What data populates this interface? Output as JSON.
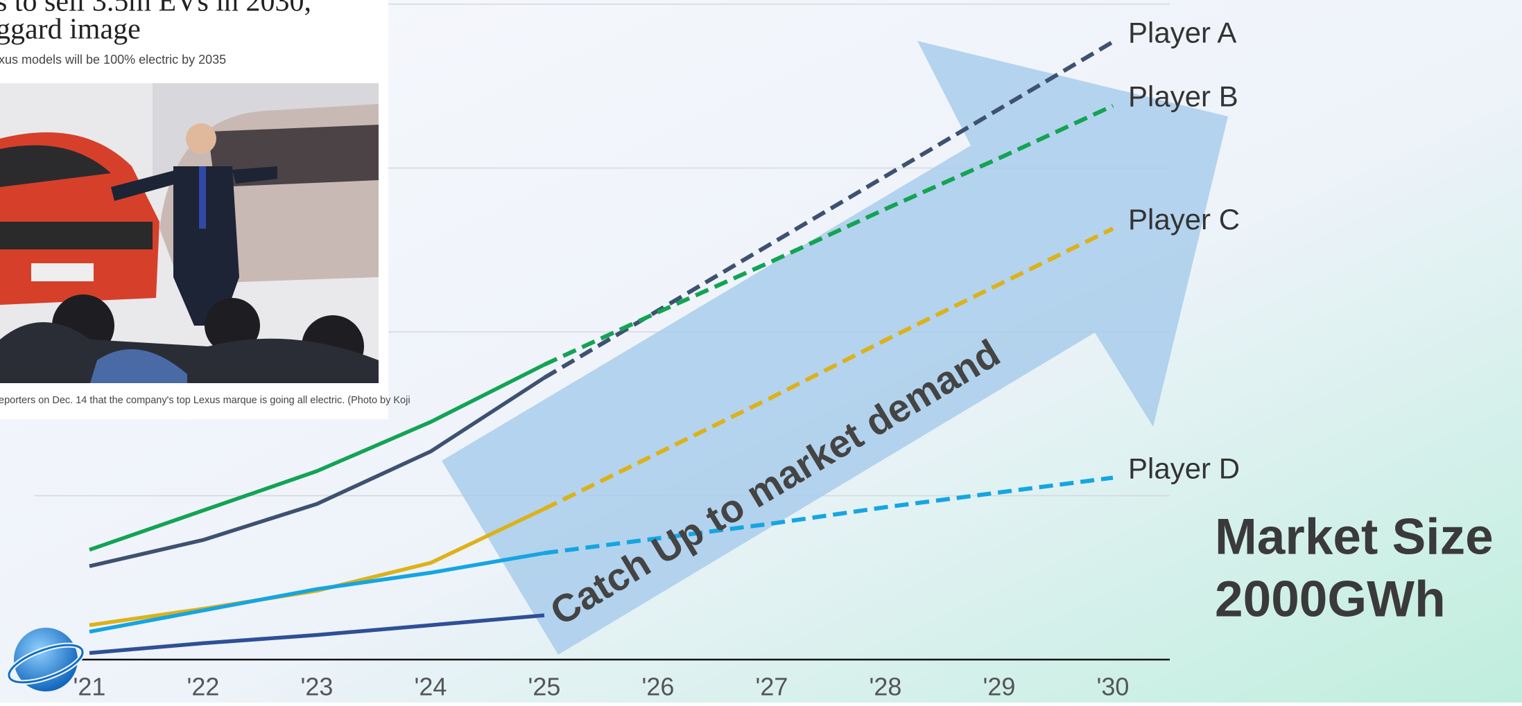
{
  "chart_data": {
    "type": "line",
    "categories": [
      "'21",
      "'22",
      "'23",
      "'24",
      "'25",
      "'26",
      "'27",
      "'28",
      "'29",
      "'30"
    ],
    "ylim": [
      0,
      4
    ],
    "yticks": [
      0,
      1,
      2,
      3,
      4
    ],
    "grid": true,
    "projection_from": 4,
    "series": [
      {
        "name": "Player A",
        "color": "#3d5170",
        "values": [
          0.57,
          0.73,
          0.95,
          1.27,
          1.72,
          2.13,
          2.54,
          2.95,
          3.36,
          3.77
        ]
      },
      {
        "name": "Player B",
        "color": "#13a354",
        "values": [
          0.67,
          0.91,
          1.15,
          1.45,
          1.8,
          2.12,
          2.43,
          2.75,
          3.06,
          3.38
        ]
      },
      {
        "name": "Player C",
        "color": "#dcb21a",
        "values": [
          0.21,
          0.31,
          0.42,
          0.59,
          0.92,
          1.26,
          1.6,
          1.95,
          2.29,
          2.63
        ]
      },
      {
        "name": "Player D",
        "color": "#15a5e2",
        "values": [
          0.17,
          0.3,
          0.43,
          0.53,
          0.65,
          0.74,
          0.83,
          0.93,
          1.02,
          1.11
        ]
      },
      {
        "color": "#2f4f96",
        "values": [
          0.04,
          0.1,
          0.15,
          0.21,
          0.27,
          null,
          null,
          null,
          null,
          null
        ]
      }
    ],
    "arrow_label": "Catch Up to market demand",
    "callout": [
      "Market Size",
      "2000GWh"
    ]
  },
  "article": {
    "headline": [
      "s to sell 3.5m EVs in 2030,",
      "ggard image"
    ],
    "subheadline": "xus models will be 100% electric by 2035",
    "caption": "eporters on Dec. 14 that the company's top Lexus marque is going all electric. (Photo by Koji"
  }
}
